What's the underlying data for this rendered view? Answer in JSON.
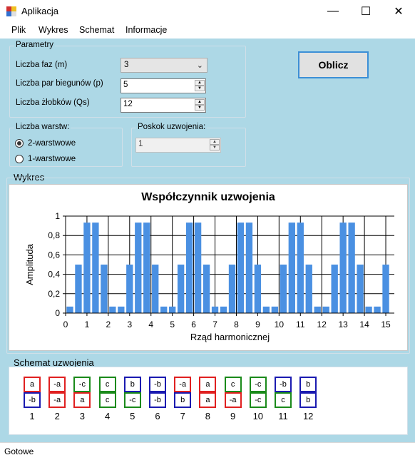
{
  "window": {
    "title": "Aplikacja",
    "minimize": "—",
    "maximize": "☐",
    "close": "✕"
  },
  "menu": [
    "Plik",
    "Wykres",
    "Schemat",
    "Informacje"
  ],
  "params": {
    "title": "Parametry",
    "phases_label": "Liczba faz (m)",
    "phases_value": "3",
    "poles_label": "Liczba par biegunów (p)",
    "poles_value": "5",
    "slots_label": "Liczba żłobków (Qs)",
    "slots_value": "12"
  },
  "compute_button": "Oblicz",
  "layers": {
    "title": "Liczba warstw:",
    "option1": "2-warstwowe",
    "option2": "1-warstwowe",
    "selected": 1
  },
  "pitch": {
    "title": "Poskok uzwojenia:",
    "value": "1"
  },
  "chart_section_title": "Wykres",
  "chart_data": {
    "type": "bar",
    "title": "Współczynnik uzwojenia",
    "xlabel": "Rząd harmonicznej",
    "ylabel": "Amplituda",
    "xlim": [
      0,
      15.4
    ],
    "ylim": [
      0,
      1
    ],
    "xticks": [
      "0",
      "1",
      "2",
      "3",
      "4",
      "5",
      "6",
      "7",
      "8",
      "9",
      "10",
      "11",
      "12",
      "13",
      "14",
      "15"
    ],
    "yticks": [
      "0",
      "0,2",
      "0,4",
      "0,6",
      "0,8",
      "1"
    ],
    "x": [
      0.2,
      0.6,
      1.0,
      1.4,
      1.8,
      2.2,
      2.6,
      3.0,
      3.4,
      3.8,
      4.2,
      4.6,
      5.0,
      5.4,
      5.8,
      6.2,
      6.6,
      7.0,
      7.4,
      7.8,
      8.2,
      8.6,
      9.0,
      9.4,
      9.8,
      10.2,
      10.6,
      11.0,
      11.4,
      11.8,
      12.2,
      12.6,
      13.0,
      13.4,
      13.8,
      14.2,
      14.6,
      15.0
    ],
    "values": [
      0.067,
      0.5,
      0.933,
      0.933,
      0.5,
      0.067,
      0.067,
      0.5,
      0.933,
      0.933,
      0.5,
      0.067,
      0.067,
      0.5,
      0.933,
      0.933,
      0.5,
      0.067,
      0.067,
      0.5,
      0.933,
      0.933,
      0.5,
      0.067,
      0.067,
      0.5,
      0.933,
      0.933,
      0.5,
      0.067,
      0.067,
      0.5,
      0.933,
      0.933,
      0.5,
      0.067,
      0.067,
      0.5
    ],
    "color": "#4a90e2",
    "grid": true
  },
  "scheme": {
    "title": "Schemat uzwojenia",
    "colors": {
      "a": "#e02020",
      "b": "#1a1ab0",
      "c": "#1a8a1a"
    },
    "slots": [
      {
        "num": "1",
        "top": "a",
        "topc": "a",
        "bottom": "-b",
        "bottomc": "b"
      },
      {
        "num": "2",
        "top": "-a",
        "topc": "a",
        "bottom": "-a",
        "bottomc": "a"
      },
      {
        "num": "3",
        "top": "-c",
        "topc": "c",
        "bottom": "a",
        "bottomc": "a"
      },
      {
        "num": "4",
        "top": "c",
        "topc": "c",
        "bottom": "c",
        "bottomc": "c"
      },
      {
        "num": "5",
        "top": "b",
        "topc": "b",
        "bottom": "-c",
        "bottomc": "c"
      },
      {
        "num": "6",
        "top": "-b",
        "topc": "b",
        "bottom": "-b",
        "bottomc": "b"
      },
      {
        "num": "7",
        "top": "-a",
        "topc": "a",
        "bottom": "b",
        "bottomc": "b"
      },
      {
        "num": "8",
        "top": "a",
        "topc": "a",
        "bottom": "a",
        "bottomc": "a"
      },
      {
        "num": "9",
        "top": "c",
        "topc": "c",
        "bottom": "-a",
        "bottomc": "a"
      },
      {
        "num": "10",
        "top": "-c",
        "topc": "c",
        "bottom": "-c",
        "bottomc": "c"
      },
      {
        "num": "11",
        "top": "-b",
        "topc": "b",
        "bottom": "c",
        "bottomc": "c"
      },
      {
        "num": "12",
        "top": "b",
        "topc": "b",
        "bottom": "b",
        "bottomc": "b"
      }
    ]
  },
  "status": "Gotowe"
}
